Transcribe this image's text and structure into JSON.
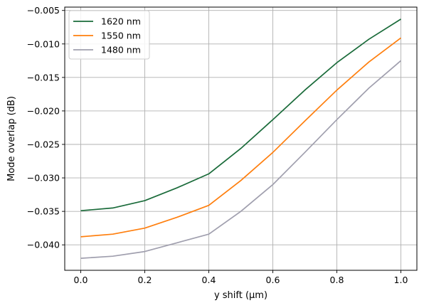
{
  "chart_data": {
    "type": "line",
    "xlabel": "y shift (µm)",
    "ylabel": "Mode overlap (dB)",
    "xlim": [
      -0.05,
      1.05
    ],
    "ylim": [
      -0.0438,
      -0.0045
    ],
    "xticks": [
      0.0,
      0.2,
      0.4,
      0.6,
      0.8,
      1.0
    ],
    "xtick_labels": [
      "0.0",
      "0.2",
      "0.4",
      "0.6",
      "0.8",
      "1.0"
    ],
    "yticks": [
      -0.04,
      -0.035,
      -0.03,
      -0.025,
      -0.02,
      -0.015,
      -0.01,
      -0.005
    ],
    "ytick_labels": [
      "−0.040",
      "−0.035",
      "−0.030",
      "−0.025",
      "−0.020",
      "−0.015",
      "−0.010",
      "−0.005"
    ],
    "grid": true,
    "legend_position": "top-left",
    "x": [
      0.0,
      0.1,
      0.2,
      0.3,
      0.4,
      0.5,
      0.6,
      0.7,
      0.8,
      0.9,
      1.0
    ],
    "series": [
      {
        "name": "1620 nm",
        "color": "#1a6b3a",
        "values": [
          -0.0349,
          -0.0345,
          -0.0334,
          -0.0315,
          -0.0294,
          -0.0256,
          -0.0213,
          -0.0169,
          -0.0128,
          -0.0093,
          -0.0063
        ]
      },
      {
        "name": "1550 nm",
        "color": "#ff7f0e",
        "values": [
          -0.0388,
          -0.0384,
          -0.0375,
          -0.0359,
          -0.0341,
          -0.0304,
          -0.0262,
          -0.0215,
          -0.0169,
          -0.0127,
          -0.0091
        ]
      },
      {
        "name": "1480 nm",
        "color": "#a09fae",
        "values": [
          -0.042,
          -0.0417,
          -0.041,
          -0.0397,
          -0.0384,
          -0.035,
          -0.031,
          -0.0262,
          -0.0213,
          -0.0166,
          -0.0125
        ]
      }
    ]
  }
}
